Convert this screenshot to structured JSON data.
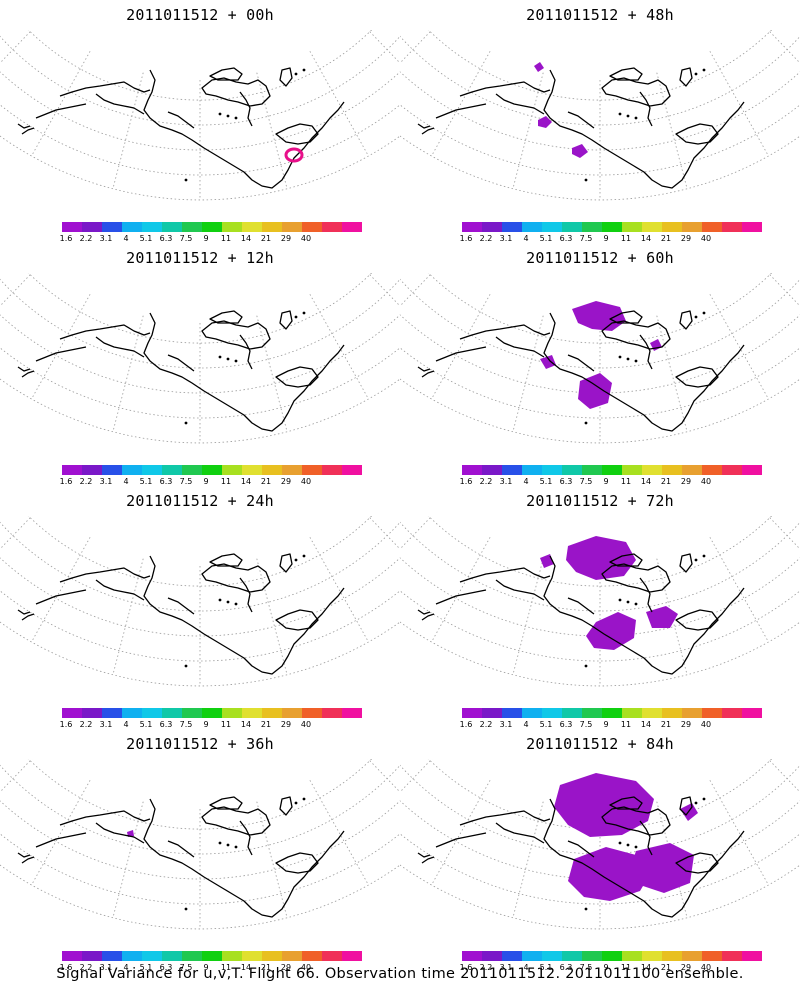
{
  "panels": [
    {
      "title": "2011011512 + 00h",
      "blobs": []
    },
    {
      "title": "2011011512 + 48h",
      "blobs": [
        "small-a",
        "small-b",
        "small-c"
      ]
    },
    {
      "title": "2011011512 + 12h",
      "blobs": []
    },
    {
      "title": "2011011512 + 60h",
      "blobs": [
        "arctic-mid",
        "alaska-w",
        "pacific-mid",
        "small-e"
      ]
    },
    {
      "title": "2011011512 + 24h",
      "blobs": []
    },
    {
      "title": "2011011512 + 72h",
      "blobs": [
        "arctic-large",
        "pacific-large",
        "canada-mid",
        "small-w"
      ]
    },
    {
      "title": "2011011512 + 36h",
      "blobs": [
        "tiny-pacific"
      ]
    },
    {
      "title": "2011011512 + 84h",
      "blobs": [
        "arctic-huge",
        "pacific-huge",
        "canada-large",
        "small-e2"
      ]
    }
  ],
  "ring_panel_index": 0,
  "shade_color": "#9a14c8",
  "ring_color": "#e8108a",
  "legend": {
    "labels": [
      "1.6",
      "2.2",
      "3.1",
      "4",
      "5.1",
      "6.3",
      "7.5",
      "9",
      "11",
      "14",
      "21",
      "29",
      "40"
    ],
    "colors": [
      "#a010d0",
      "#7a18c8",
      "#2850e8",
      "#10b0f0",
      "#10c8e8",
      "#10c8a8",
      "#20c850",
      "#10d010",
      "#a8e020",
      "#e0e030",
      "#e8c020",
      "#e8a030",
      "#f06028",
      "#f03058",
      "#f010a0"
    ]
  },
  "caption": "Signal Variance for u,v,T. Flight 66. Observation time 2011011512. 2011011100 ensemble."
}
